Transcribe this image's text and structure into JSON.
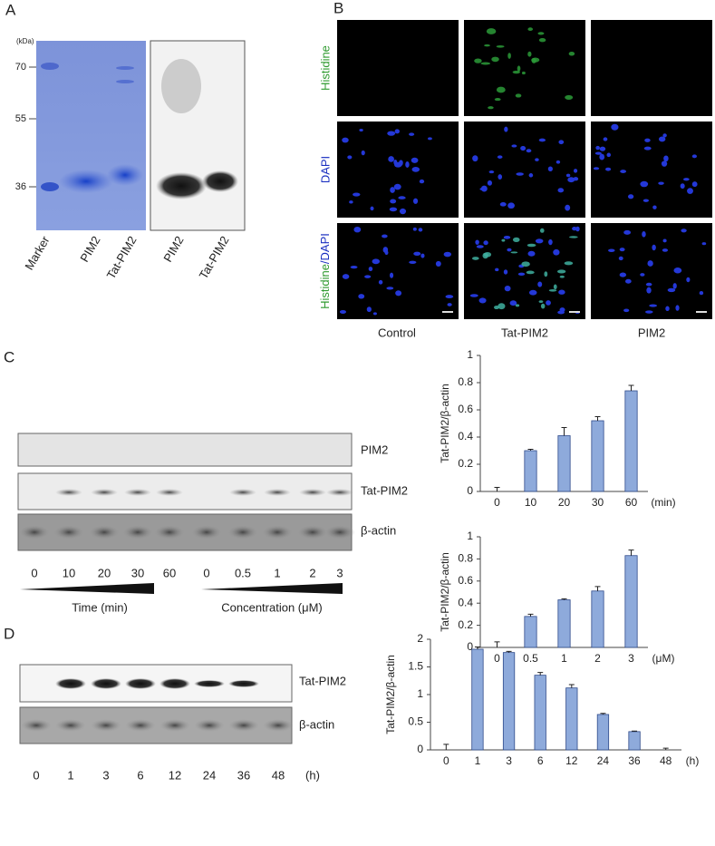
{
  "panel_a": {
    "label": "A",
    "unit": "(kDa)",
    "markers": [
      "70",
      "55",
      "36"
    ],
    "lanes": [
      "Marker",
      "PIM2",
      "Tat-PIM2",
      "PIM2",
      "Tat-PIM2"
    ]
  },
  "panel_b": {
    "label": "B",
    "rows": [
      "Histidine",
      "DAPI"
    ],
    "merged_row": [
      "Histidine",
      "/DAPI"
    ],
    "columns": [
      "Control",
      "Tat-PIM2",
      "PIM2"
    ]
  },
  "panel_c": {
    "label": "C",
    "blots": [
      "PIM2",
      "Tat-PIM2",
      "β-actin"
    ],
    "lanes": [
      "0",
      "10",
      "20",
      "30",
      "60",
      "0",
      "0.5",
      "1",
      "2",
      "3"
    ],
    "time_label": "Time (min)",
    "conc_label": "Concentration (μM)"
  },
  "panel_d": {
    "label": "D",
    "blots": [
      "Tat-PIM2",
      "β-actin"
    ],
    "lanes": [
      "0",
      "1",
      "3",
      "6",
      "12",
      "24",
      "36",
      "48"
    ],
    "unit": "(h)"
  },
  "chart_data": [
    {
      "type": "bar",
      "y_label": "Tat-PIM2/β-actin",
      "x_unit": "(min)",
      "categories": [
        "0",
        "10",
        "20",
        "30",
        "60"
      ],
      "values": [
        0.0,
        0.3,
        0.41,
        0.52,
        0.74
      ],
      "errors": [
        0.03,
        0.01,
        0.06,
        0.03,
        0.04
      ],
      "color": "#8eaadb",
      "ylim": [
        0,
        1
      ],
      "yticks": [
        0,
        0.2,
        0.4,
        0.6,
        0.8,
        1
      ]
    },
    {
      "type": "bar",
      "y_label": "Tat-PIM2/β-actin",
      "x_unit": "(μM)",
      "categories": [
        "0",
        "0.5",
        "1",
        "2",
        "3"
      ],
      "values": [
        0.0,
        0.28,
        0.43,
        0.51,
        0.83
      ],
      "errors": [
        0.05,
        0.02,
        0.01,
        0.04,
        0.05
      ],
      "color": "#8eaadb",
      "ylim": [
        0,
        1
      ],
      "yticks": [
        0,
        0.2,
        0.4,
        0.6,
        0.8,
        1
      ]
    },
    {
      "type": "bar",
      "y_label": "Tat-PIM2/β-actin",
      "x_unit": "(h)",
      "categories": [
        "0",
        "1",
        "3",
        "6",
        "12",
        "24",
        "36",
        "48"
      ],
      "values": [
        0.0,
        1.82,
        1.76,
        1.35,
        1.12,
        0.64,
        0.33,
        0.0
      ],
      "errors": [
        0.1,
        0.04,
        0.02,
        0.05,
        0.06,
        0.02,
        0.01,
        0.03
      ],
      "color": "#8eaadb",
      "ylim": [
        0,
        2
      ],
      "yticks": [
        0,
        0.5,
        1,
        1.5,
        2
      ]
    }
  ]
}
